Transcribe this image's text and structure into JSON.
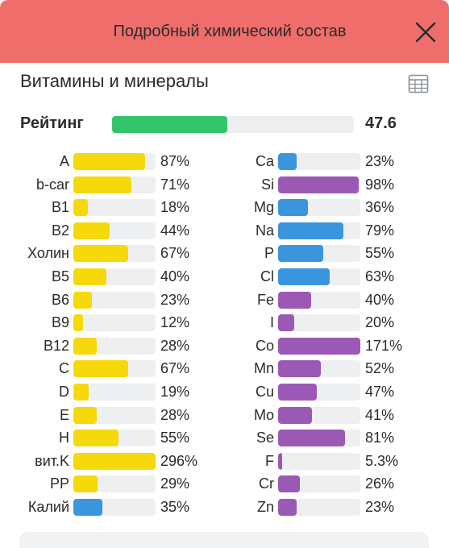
{
  "header": {
    "title": "Подробный химический состав"
  },
  "section": {
    "title": "Витамины и минералы"
  },
  "rating": {
    "label": "Рейтинг",
    "value": "47.6",
    "fraction": 0.476,
    "color": "#34c46b"
  },
  "colors": {
    "vitamin": "#f5d90a",
    "mineral_blue": "#3a95dd",
    "mineral_purple": "#9b59b6",
    "track": "#eeeff0",
    "header_bg": "#ef6e6b"
  },
  "icons": {
    "close": "close-icon",
    "table": "table-icon"
  },
  "nutrients": {
    "left": [
      {
        "name": "A",
        "value": "87%",
        "percent": 87,
        "color": "#f5d90a"
      },
      {
        "name": "b-car",
        "value": "71%",
        "percent": 71,
        "color": "#f5d90a"
      },
      {
        "name": "B1",
        "value": "18%",
        "percent": 18,
        "color": "#f5d90a"
      },
      {
        "name": "B2",
        "value": "44%",
        "percent": 44,
        "color": "#f5d90a"
      },
      {
        "name": "Холин",
        "value": "67%",
        "percent": 67,
        "color": "#f5d90a"
      },
      {
        "name": "B5",
        "value": "40%",
        "percent": 40,
        "color": "#f5d90a"
      },
      {
        "name": "B6",
        "value": "23%",
        "percent": 23,
        "color": "#f5d90a"
      },
      {
        "name": "B9",
        "value": "12%",
        "percent": 12,
        "color": "#f5d90a"
      },
      {
        "name": "B12",
        "value": "28%",
        "percent": 28,
        "color": "#f5d90a"
      },
      {
        "name": "C",
        "value": "67%",
        "percent": 67,
        "color": "#f5d90a"
      },
      {
        "name": "D",
        "value": "19%",
        "percent": 19,
        "color": "#f5d90a"
      },
      {
        "name": "E",
        "value": "28%",
        "percent": 28,
        "color": "#f5d90a"
      },
      {
        "name": "H",
        "value": "55%",
        "percent": 55,
        "color": "#f5d90a"
      },
      {
        "name": "вит.K",
        "value": "296%",
        "percent": 296,
        "color": "#f5d90a"
      },
      {
        "name": "PP",
        "value": "29%",
        "percent": 29,
        "color": "#f5d90a"
      },
      {
        "name": "Калий",
        "value": "35%",
        "percent": 35,
        "color": "#3a95dd"
      }
    ],
    "right": [
      {
        "name": "Ca",
        "value": "23%",
        "percent": 23,
        "color": "#3a95dd"
      },
      {
        "name": "Si",
        "value": "98%",
        "percent": 98,
        "color": "#9b59b6"
      },
      {
        "name": "Mg",
        "value": "36%",
        "percent": 36,
        "color": "#3a95dd"
      },
      {
        "name": "Na",
        "value": "79%",
        "percent": 79,
        "color": "#3a95dd"
      },
      {
        "name": "P",
        "value": "55%",
        "percent": 55,
        "color": "#3a95dd"
      },
      {
        "name": "Cl",
        "value": "63%",
        "percent": 63,
        "color": "#3a95dd"
      },
      {
        "name": "Fe",
        "value": "40%",
        "percent": 40,
        "color": "#9b59b6"
      },
      {
        "name": "I",
        "value": "20%",
        "percent": 20,
        "color": "#9b59b6"
      },
      {
        "name": "Co",
        "value": "171%",
        "percent": 171,
        "color": "#9b59b6"
      },
      {
        "name": "Mn",
        "value": "52%",
        "percent": 52,
        "color": "#9b59b6"
      },
      {
        "name": "Cu",
        "value": "47%",
        "percent": 47,
        "color": "#9b59b6"
      },
      {
        "name": "Mo",
        "value": "41%",
        "percent": 41,
        "color": "#9b59b6"
      },
      {
        "name": "Se",
        "value": "81%",
        "percent": 81,
        "color": "#9b59b6"
      },
      {
        "name": "F",
        "value": "5.3%",
        "percent": 5.3,
        "color": "#9b59b6"
      },
      {
        "name": "Cr",
        "value": "26%",
        "percent": 26,
        "color": "#9b59b6"
      },
      {
        "name": "Zn",
        "value": "23%",
        "percent": 23,
        "color": "#9b59b6"
      }
    ]
  }
}
